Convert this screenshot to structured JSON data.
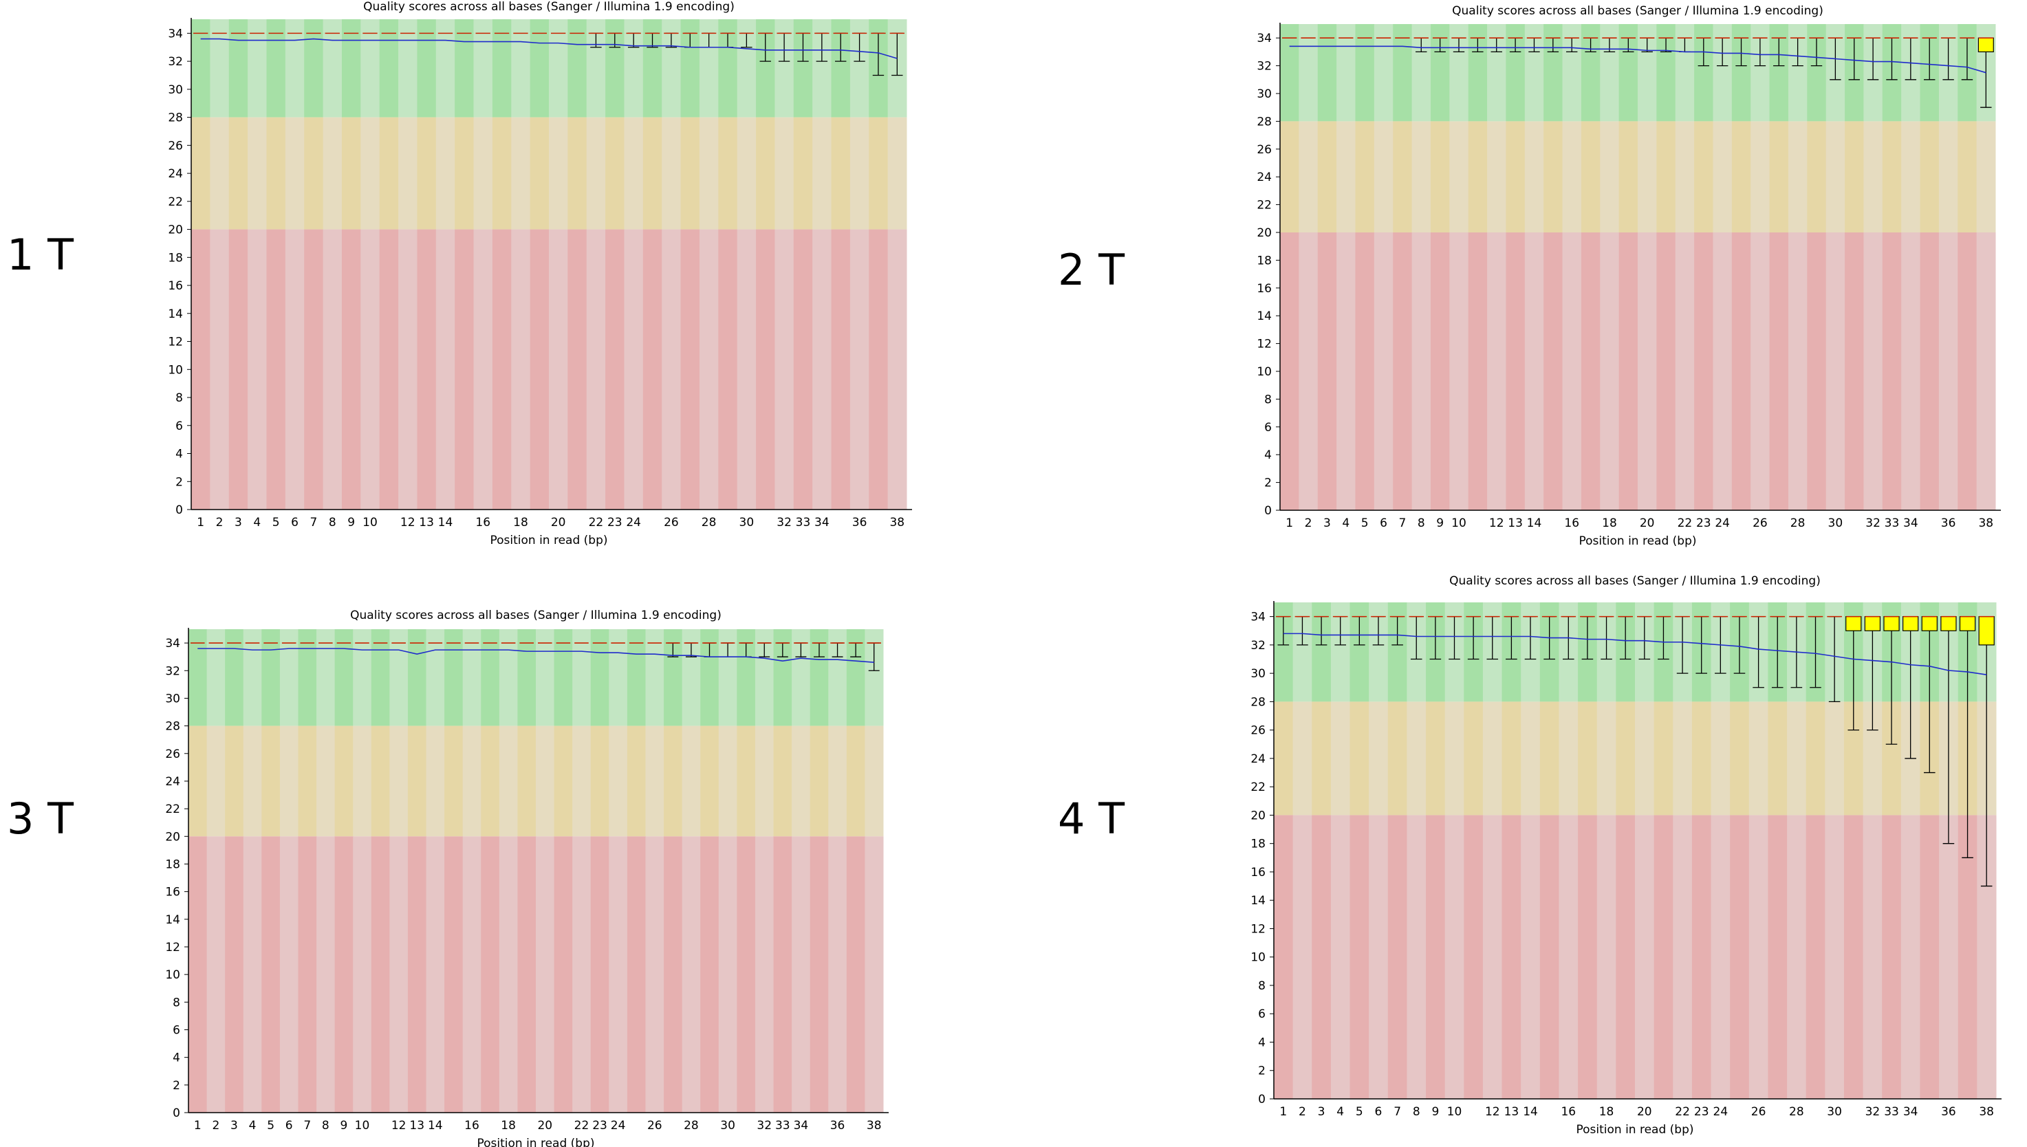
{
  "figure": {
    "panels": [
      {
        "label": "1 T"
      },
      {
        "label": "2 T"
      },
      {
        "label": "3 T"
      },
      {
        "label": "4 T"
      }
    ]
  },
  "chart_data": [
    {
      "type": "box",
      "title": "Quality scores across all bases (Sanger / Illumina 1.9 encoding)",
      "xlabel": "Position in read (bp)",
      "ylabel": "",
      "ylim": [
        0,
        35
      ],
      "yticks": [
        0,
        2,
        4,
        6,
        8,
        10,
        12,
        14,
        16,
        18,
        20,
        22,
        24,
        26,
        28,
        30,
        32,
        34
      ],
      "positions": [
        1,
        2,
        3,
        4,
        5,
        6,
        7,
        8,
        9,
        10,
        11,
        12,
        13,
        14,
        15,
        16,
        17,
        18,
        19,
        20,
        21,
        22,
        23,
        24,
        25,
        26,
        27,
        28,
        29,
        30,
        31,
        32,
        33,
        34,
        35,
        36,
        37,
        38
      ],
      "xtick_labels": [
        "1",
        "2",
        "3",
        "4",
        "5",
        "6",
        "7",
        "8",
        "9",
        "10",
        "",
        "12",
        "13",
        "14",
        "",
        "16",
        "",
        "18",
        "",
        "20",
        "",
        "22",
        "23",
        "24",
        "",
        "26",
        "",
        "28",
        "",
        "30",
        "",
        "32",
        "33",
        "34",
        "",
        "36",
        "",
        "38"
      ],
      "bands": [
        {
          "from": 28,
          "to": 35,
          "colors": [
            "#a6e0a6",
            "#c3e6c3"
          ]
        },
        {
          "from": 20,
          "to": 28,
          "colors": [
            "#e6d7a6",
            "#e6dcc0"
          ]
        },
        {
          "from": 0,
          "to": 20,
          "colors": [
            "#e6b0b0",
            "#e6c6c6"
          ]
        }
      ],
      "median_color": "#cc2200",
      "mean_color": "#1f2bcc",
      "box_color": "#ffff00",
      "median": [
        34,
        34,
        34,
        34,
        34,
        34,
        34,
        34,
        34,
        34,
        34,
        34,
        34,
        34,
        34,
        34,
        34,
        34,
        34,
        34,
        34,
        34,
        34,
        34,
        34,
        34,
        34,
        34,
        34,
        34,
        34,
        34,
        34,
        34,
        34,
        34,
        34,
        34
      ],
      "lower_whisker": [
        34,
        34,
        34,
        34,
        34,
        34,
        34,
        34,
        34,
        34,
        34,
        34,
        34,
        34,
        34,
        34,
        34,
        34,
        34,
        34,
        34,
        33,
        33,
        33,
        33,
        33,
        33,
        33,
        33,
        33,
        32,
        32,
        32,
        32,
        32,
        32,
        31,
        31
      ],
      "upper_whisker": [
        34,
        34,
        34,
        34,
        34,
        34,
        34,
        34,
        34,
        34,
        34,
        34,
        34,
        34,
        34,
        34,
        34,
        34,
        34,
        34,
        34,
        34,
        34,
        34,
        34,
        34,
        34,
        34,
        34,
        34,
        34,
        34,
        34,
        34,
        34,
        34,
        34,
        34
      ],
      "box_low": [],
      "box_high": [],
      "mean": [
        33.6,
        33.6,
        33.5,
        33.5,
        33.5,
        33.5,
        33.6,
        33.5,
        33.5,
        33.5,
        33.5,
        33.5,
        33.5,
        33.5,
        33.4,
        33.4,
        33.4,
        33.4,
        33.3,
        33.3,
        33.2,
        33.2,
        33.2,
        33.1,
        33.1,
        33.1,
        33.0,
        33.0,
        33.0,
        32.9,
        32.8,
        32.8,
        32.8,
        32.8,
        32.8,
        32.7,
        32.6,
        32.2
      ]
    },
    {
      "type": "box",
      "title": "Quality scores across all bases (Sanger / Illumina 1.9 encoding)",
      "xlabel": "Position in read (bp)",
      "ylabel": "",
      "ylim": [
        0,
        35
      ],
      "yticks": [
        0,
        2,
        4,
        6,
        8,
        10,
        12,
        14,
        16,
        18,
        20,
        22,
        24,
        26,
        28,
        30,
        32,
        34
      ],
      "positions": [
        1,
        2,
        3,
        4,
        5,
        6,
        7,
        8,
        9,
        10,
        11,
        12,
        13,
        14,
        15,
        16,
        17,
        18,
        19,
        20,
        21,
        22,
        23,
        24,
        25,
        26,
        27,
        28,
        29,
        30,
        31,
        32,
        33,
        34,
        35,
        36,
        37,
        38
      ],
      "xtick_labels": [
        "1",
        "2",
        "3",
        "4",
        "5",
        "6",
        "7",
        "8",
        "9",
        "10",
        "",
        "12",
        "13",
        "14",
        "",
        "16",
        "",
        "18",
        "",
        "20",
        "",
        "22",
        "23",
        "24",
        "",
        "26",
        "",
        "28",
        "",
        "30",
        "",
        "32",
        "33",
        "34",
        "",
        "36",
        "",
        "38"
      ],
      "bands": [
        {
          "from": 28,
          "to": 35,
          "colors": [
            "#a6e0a6",
            "#c3e6c3"
          ]
        },
        {
          "from": 20,
          "to": 28,
          "colors": [
            "#e6d7a6",
            "#e6dcc0"
          ]
        },
        {
          "from": 0,
          "to": 20,
          "colors": [
            "#e6b0b0",
            "#e6c6c6"
          ]
        }
      ],
      "median_color": "#cc2200",
      "mean_color": "#1f2bcc",
      "box_color": "#ffff00",
      "median": [
        34,
        34,
        34,
        34,
        34,
        34,
        34,
        34,
        34,
        34,
        34,
        34,
        34,
        34,
        34,
        34,
        34,
        34,
        34,
        34,
        34,
        34,
        34,
        34,
        34,
        34,
        34,
        34,
        34,
        34,
        34,
        34,
        34,
        34,
        34,
        34,
        34,
        34
      ],
      "lower_whisker": [
        34,
        34,
        34,
        34,
        34,
        34,
        34,
        33,
        33,
        33,
        33,
        33,
        33,
        33,
        33,
        33,
        33,
        33,
        33,
        33,
        33,
        33,
        32,
        32,
        32,
        32,
        32,
        32,
        32,
        31,
        31,
        31,
        31,
        31,
        31,
        31,
        31,
        29
      ],
      "upper_whisker": [
        34,
        34,
        34,
        34,
        34,
        34,
        34,
        34,
        34,
        34,
        34,
        34,
        34,
        34,
        34,
        34,
        34,
        34,
        34,
        34,
        34,
        34,
        34,
        34,
        34,
        34,
        34,
        34,
        34,
        34,
        34,
        34,
        34,
        34,
        34,
        34,
        34,
        34
      ],
      "box_low": [
        null,
        null,
        null,
        null,
        null,
        null,
        null,
        null,
        null,
        null,
        null,
        null,
        null,
        null,
        null,
        null,
        null,
        null,
        null,
        null,
        null,
        null,
        null,
        null,
        null,
        null,
        null,
        null,
        null,
        null,
        null,
        null,
        null,
        null,
        null,
        null,
        null,
        33
      ],
      "box_high": [
        null,
        null,
        null,
        null,
        null,
        null,
        null,
        null,
        null,
        null,
        null,
        null,
        null,
        null,
        null,
        null,
        null,
        null,
        null,
        null,
        null,
        null,
        null,
        null,
        null,
        null,
        null,
        null,
        null,
        null,
        null,
        null,
        null,
        null,
        null,
        null,
        null,
        34
      ],
      "mean": [
        33.4,
        33.4,
        33.4,
        33.4,
        33.4,
        33.4,
        33.4,
        33.3,
        33.3,
        33.3,
        33.3,
        33.3,
        33.3,
        33.3,
        33.3,
        33.3,
        33.2,
        33.2,
        33.2,
        33.1,
        33.1,
        33.0,
        33.0,
        32.9,
        32.9,
        32.8,
        32.8,
        32.7,
        32.6,
        32.5,
        32.4,
        32.3,
        32.3,
        32.2,
        32.1,
        32.0,
        31.9,
        31.5
      ]
    },
    {
      "type": "box",
      "title": "Quality scores across all bases (Sanger / Illumina 1.9 encoding)",
      "xlabel": "Position in read (bp)",
      "ylabel": "",
      "ylim": [
        0,
        35
      ],
      "yticks": [
        0,
        2,
        4,
        6,
        8,
        10,
        12,
        14,
        16,
        18,
        20,
        22,
        24,
        26,
        28,
        30,
        32,
        34
      ],
      "positions": [
        1,
        2,
        3,
        4,
        5,
        6,
        7,
        8,
        9,
        10,
        11,
        12,
        13,
        14,
        15,
        16,
        17,
        18,
        19,
        20,
        21,
        22,
        23,
        24,
        25,
        26,
        27,
        28,
        29,
        30,
        31,
        32,
        33,
        34,
        35,
        36,
        37,
        38
      ],
      "xtick_labels": [
        "1",
        "2",
        "3",
        "4",
        "5",
        "6",
        "7",
        "8",
        "9",
        "10",
        "",
        "12",
        "13",
        "14",
        "",
        "16",
        "",
        "18",
        "",
        "20",
        "",
        "22",
        "23",
        "24",
        "",
        "26",
        "",
        "28",
        "",
        "30",
        "",
        "32",
        "33",
        "34",
        "",
        "36",
        "",
        "38"
      ],
      "bands": [
        {
          "from": 28,
          "to": 35,
          "colors": [
            "#a6e0a6",
            "#c3e6c3"
          ]
        },
        {
          "from": 20,
          "to": 28,
          "colors": [
            "#e6d7a6",
            "#e6dcc0"
          ]
        },
        {
          "from": 0,
          "to": 20,
          "colors": [
            "#e6b0b0",
            "#e6c6c6"
          ]
        }
      ],
      "median_color": "#cc2200",
      "mean_color": "#1f2bcc",
      "box_color": "#ffff00",
      "median": [
        34,
        34,
        34,
        34,
        34,
        34,
        34,
        34,
        34,
        34,
        34,
        34,
        34,
        34,
        34,
        34,
        34,
        34,
        34,
        34,
        34,
        34,
        34,
        34,
        34,
        34,
        34,
        34,
        34,
        34,
        34,
        34,
        34,
        34,
        34,
        34,
        34,
        34
      ],
      "lower_whisker": [
        34,
        34,
        34,
        34,
        34,
        34,
        34,
        34,
        34,
        34,
        34,
        34,
        34,
        34,
        34,
        34,
        34,
        34,
        34,
        34,
        34,
        34,
        34,
        34,
        34,
        34,
        33,
        33,
        33,
        33,
        33,
        33,
        33,
        33,
        33,
        33,
        33,
        32
      ],
      "upper_whisker": [
        34,
        34,
        34,
        34,
        34,
        34,
        34,
        34,
        34,
        34,
        34,
        34,
        34,
        34,
        34,
        34,
        34,
        34,
        34,
        34,
        34,
        34,
        34,
        34,
        34,
        34,
        34,
        34,
        34,
        34,
        34,
        34,
        34,
        34,
        34,
        34,
        34,
        34
      ],
      "box_low": [],
      "box_high": [],
      "mean": [
        33.6,
        33.6,
        33.6,
        33.5,
        33.5,
        33.6,
        33.6,
        33.6,
        33.6,
        33.5,
        33.5,
        33.5,
        33.2,
        33.5,
        33.5,
        33.5,
        33.5,
        33.5,
        33.4,
        33.4,
        33.4,
        33.4,
        33.3,
        33.3,
        33.2,
        33.2,
        33.1,
        33.1,
        33.0,
        33.0,
        33.0,
        32.9,
        32.7,
        32.9,
        32.8,
        32.8,
        32.7,
        32.6
      ]
    },
    {
      "type": "box",
      "title": "Quality scores across all bases (Sanger / Illumina 1.9 encoding)",
      "xlabel": "Position in read (bp)",
      "ylabel": "",
      "ylim": [
        0,
        35
      ],
      "yticks": [
        0,
        2,
        4,
        6,
        8,
        10,
        12,
        14,
        16,
        18,
        20,
        22,
        24,
        26,
        28,
        30,
        32,
        34
      ],
      "positions": [
        1,
        2,
        3,
        4,
        5,
        6,
        7,
        8,
        9,
        10,
        11,
        12,
        13,
        14,
        15,
        16,
        17,
        18,
        19,
        20,
        21,
        22,
        23,
        24,
        25,
        26,
        27,
        28,
        29,
        30,
        31,
        32,
        33,
        34,
        35,
        36,
        37,
        38
      ],
      "xtick_labels": [
        "1",
        "2",
        "3",
        "4",
        "5",
        "6",
        "7",
        "8",
        "9",
        "10",
        "",
        "12",
        "13",
        "14",
        "",
        "16",
        "",
        "18",
        "",
        "20",
        "",
        "22",
        "23",
        "24",
        "",
        "26",
        "",
        "28",
        "",
        "30",
        "",
        "32",
        "33",
        "34",
        "",
        "36",
        "",
        "38"
      ],
      "bands": [
        {
          "from": 28,
          "to": 35,
          "colors": [
            "#a6e0a6",
            "#c3e6c3"
          ]
        },
        {
          "from": 20,
          "to": 28,
          "colors": [
            "#e6d7a6",
            "#e6dcc0"
          ]
        },
        {
          "from": 0,
          "to": 20,
          "colors": [
            "#e6b0b0",
            "#e6c6c6"
          ]
        }
      ],
      "median_color": "#cc2200",
      "mean_color": "#1f2bcc",
      "box_color": "#ffff00",
      "median": [
        34,
        34,
        34,
        34,
        34,
        34,
        34,
        34,
        34,
        34,
        34,
        34,
        34,
        34,
        34,
        34,
        34,
        34,
        34,
        34,
        34,
        34,
        34,
        34,
        34,
        34,
        34,
        34,
        34,
        34,
        34,
        34,
        34,
        34,
        34,
        34,
        34,
        34
      ],
      "lower_whisker": [
        32,
        32,
        32,
        32,
        32,
        32,
        32,
        31,
        31,
        31,
        31,
        31,
        31,
        31,
        31,
        31,
        31,
        31,
        31,
        31,
        31,
        30,
        30,
        30,
        30,
        29,
        29,
        29,
        29,
        28,
        26,
        26,
        25,
        24,
        23,
        18,
        17,
        15
      ],
      "upper_whisker": [
        34,
        34,
        34,
        34,
        34,
        34,
        34,
        34,
        34,
        34,
        34,
        34,
        34,
        34,
        34,
        34,
        34,
        34,
        34,
        34,
        34,
        34,
        34,
        34,
        34,
        34,
        34,
        34,
        34,
        34,
        34,
        34,
        34,
        34,
        34,
        34,
        34,
        34
      ],
      "box_low": [
        null,
        null,
        null,
        null,
        null,
        null,
        null,
        null,
        null,
        null,
        null,
        null,
        null,
        null,
        null,
        null,
        null,
        null,
        null,
        null,
        null,
        null,
        null,
        null,
        null,
        null,
        null,
        null,
        null,
        null,
        33,
        33,
        33,
        33,
        33,
        33,
        33,
        32
      ],
      "box_high": [
        null,
        null,
        null,
        null,
        null,
        null,
        null,
        null,
        null,
        null,
        null,
        null,
        null,
        null,
        null,
        null,
        null,
        null,
        null,
        null,
        null,
        null,
        null,
        null,
        null,
        null,
        null,
        null,
        null,
        null,
        34,
        34,
        34,
        34,
        34,
        34,
        34,
        34
      ],
      "mean": [
        32.8,
        32.8,
        32.7,
        32.7,
        32.7,
        32.7,
        32.7,
        32.6,
        32.6,
        32.6,
        32.6,
        32.6,
        32.6,
        32.6,
        32.5,
        32.5,
        32.4,
        32.4,
        32.3,
        32.3,
        32.2,
        32.2,
        32.1,
        32.0,
        31.9,
        31.7,
        31.6,
        31.5,
        31.4,
        31.2,
        31.0,
        30.9,
        30.8,
        30.6,
        30.5,
        30.2,
        30.1,
        29.9
      ]
    }
  ]
}
